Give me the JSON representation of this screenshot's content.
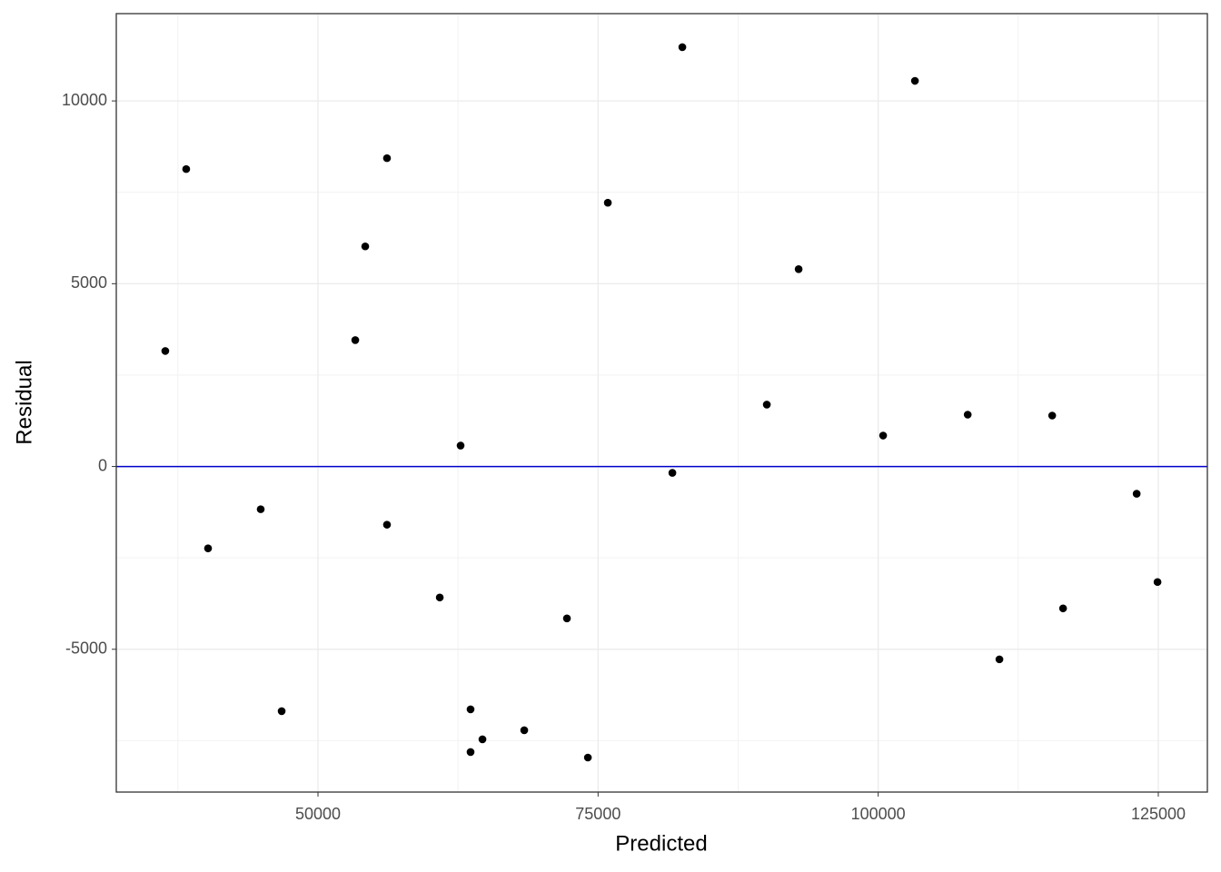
{
  "chart_data": {
    "type": "scatter",
    "x_label": "Predicted",
    "y_label": "Residual",
    "x": [
      36375,
      38240,
      40190,
      44890,
      46760,
      53330,
      54220,
      56160,
      56160,
      60870,
      62730,
      63620,
      63620,
      64680,
      68410,
      72220,
      74090,
      75870,
      81630,
      82520,
      90060,
      92900,
      100440,
      103280,
      107990,
      110820,
      115530,
      116500,
      123070,
      124930
    ],
    "values": [
      3160,
      8136,
      -2239,
      -1169,
      -6693,
      3458,
      6021,
      8434,
      -1592,
      -3583,
      572,
      -6643,
      -7812,
      -7464,
      -7215,
      -4155,
      -7962,
      7215,
      -174,
      11470,
      1692,
      5399,
      846,
      10549,
      1418,
      -5275,
      1393,
      -3881,
      -746,
      -3160
    ],
    "color": "#000000",
    "xlim": [
      32000,
      129380
    ],
    "ylim": [
      -8906,
      12388
    ],
    "xticks": [
      50000,
      75000,
      100000,
      125000
    ],
    "yticks": [
      -5000,
      0,
      5000,
      10000
    ],
    "grid": true,
    "reference_line": {
      "y": 0,
      "color": "#0000cc"
    }
  }
}
